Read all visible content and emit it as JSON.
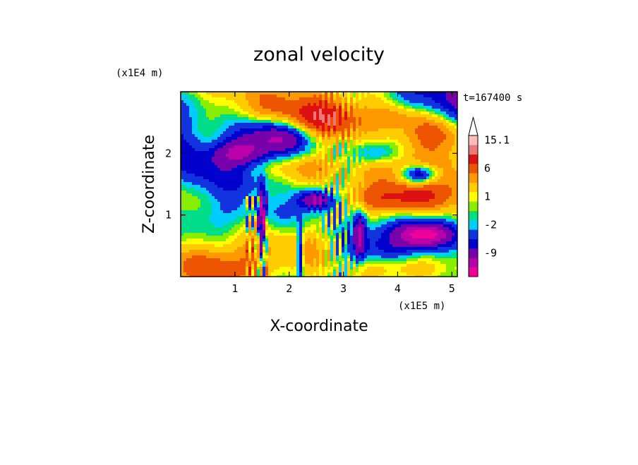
{
  "chart_data": {
    "type": "heatmap",
    "title": "zonal velocity",
    "xlabel": "X-coordinate",
    "ylabel": "Z-coordinate",
    "x_multiplier": "(x1E5 m)",
    "y_multiplier": "(x1E4 m)",
    "time_label": "t=167400 s",
    "xlim": [
      0,
      5.1
    ],
    "ylim": [
      0,
      3.0
    ],
    "x_ticks": [
      {
        "value": 1,
        "label": "1"
      },
      {
        "value": 2,
        "label": "2"
      },
      {
        "value": 3,
        "label": "3"
      },
      {
        "value": 4,
        "label": "4"
      },
      {
        "value": 5,
        "label": "5"
      }
    ],
    "y_ticks": [
      {
        "value": 1,
        "label": "1"
      },
      {
        "value": 2,
        "label": "2"
      }
    ],
    "colorbar": {
      "levels": [
        -15,
        -12,
        -9,
        -6,
        -4,
        -2,
        -1,
        0,
        1,
        2,
        4,
        6,
        9,
        12,
        15.1
      ],
      "colors": [
        "#ee0099",
        "#bb00aa",
        "#7700aa",
        "#0000cc",
        "#1133dd",
        "#00ccff",
        "#00dd88",
        "#88ee00",
        "#ffff00",
        "#ffcc00",
        "#ff9900",
        "#ee5500",
        "#dd1111",
        "#ee7777",
        "#ffbbbb"
      ],
      "labels": [
        {
          "value": -9,
          "label": "-9"
        },
        {
          "value": -2,
          "label": "-2"
        },
        {
          "value": 1,
          "label": "1"
        },
        {
          "value": 6,
          "label": "6"
        },
        {
          "value": 15.1,
          "label": "15.1"
        }
      ],
      "extend": "max"
    },
    "grid": false
  }
}
